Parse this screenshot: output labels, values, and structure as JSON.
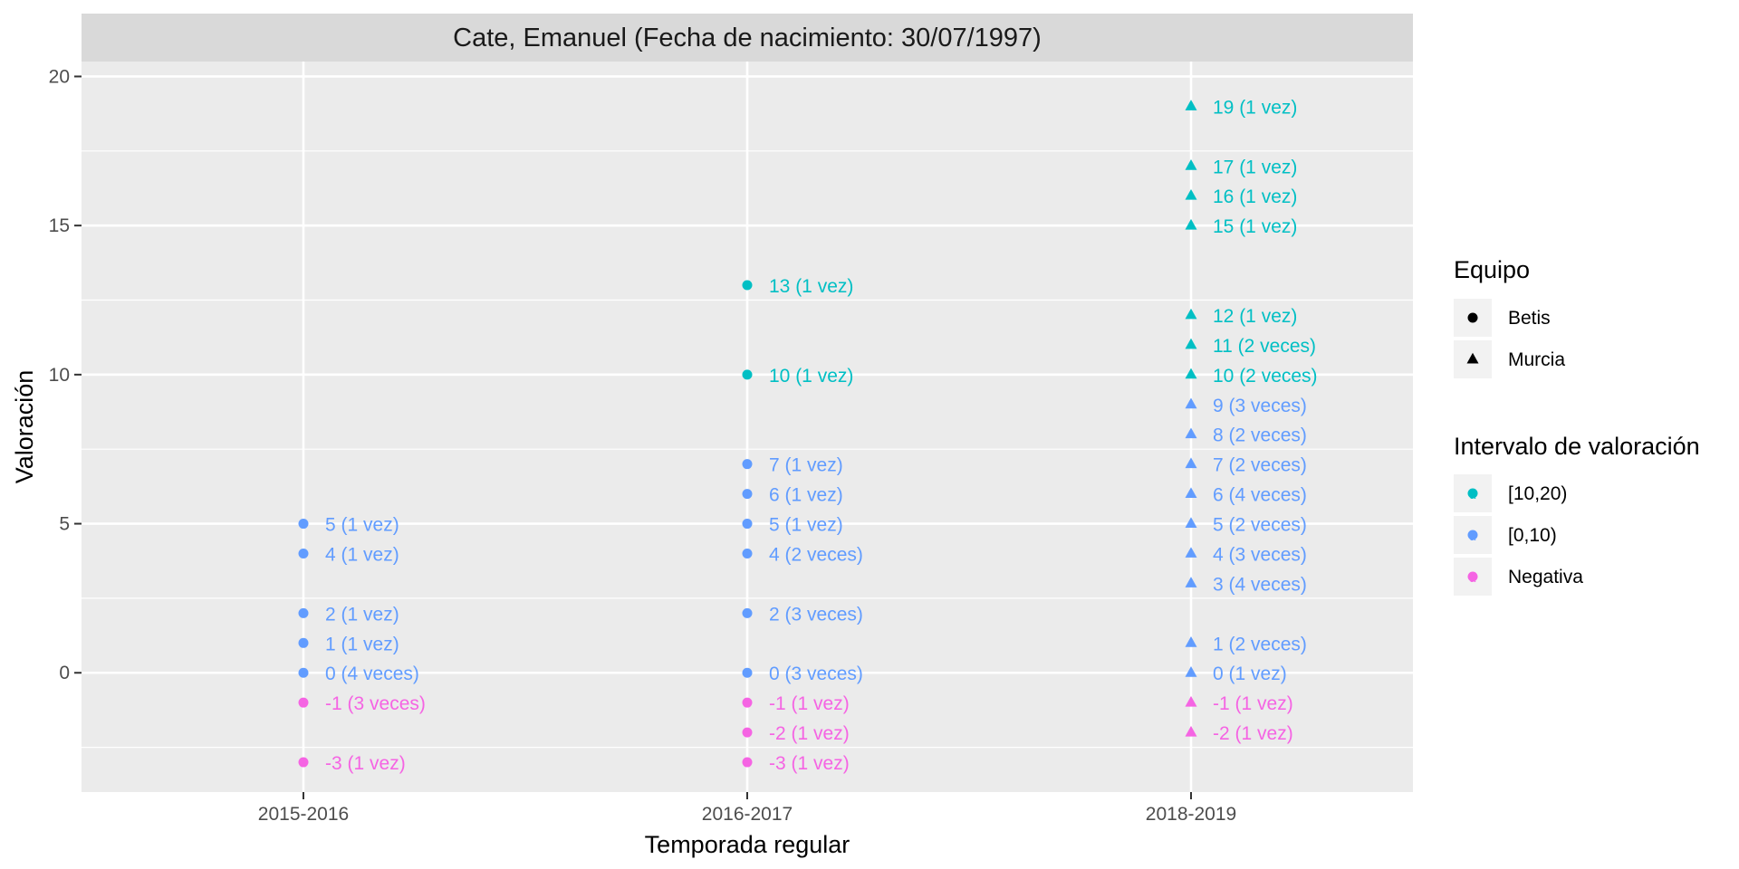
{
  "chart_data": {
    "type": "scatter",
    "title": "Cate, Emanuel (Fecha de nacimiento: 30/07/1997)",
    "xlabel": "Temporada regular",
    "ylabel": "Valoración",
    "categories": [
      "2015-2016",
      "2016-2017",
      "2018-2019"
    ],
    "yticks": [
      0,
      5,
      10,
      15,
      20
    ],
    "ylim": [
      -4,
      20.5
    ],
    "grid": true,
    "legend_position": "right",
    "legend": {
      "shape_title": "Equipo",
      "shapes": [
        {
          "label": "Betis",
          "shape": "circle"
        },
        {
          "label": "Murcia",
          "shape": "triangle"
        }
      ],
      "color_title": "Intervalo de valoración",
      "colors": [
        {
          "label": "[10,20)",
          "color": "#00BFC4"
        },
        {
          "label": "[0,10)",
          "color": "#619CFF"
        },
        {
          "label": "Negativa",
          "color": "#F564E3"
        }
      ]
    },
    "colors": {
      "high": "#00BFC4",
      "mid": "#619CFF",
      "neg": "#F564E3",
      "panel": "#EBEBEB",
      "strip": "#D9D9D9"
    },
    "points": [
      {
        "x": "2015-2016",
        "y": 5,
        "team": "Betis",
        "interval": "[0,10)",
        "label": "5 (1 vez)"
      },
      {
        "x": "2015-2016",
        "y": 4,
        "team": "Betis",
        "interval": "[0,10)",
        "label": "4 (1 vez)"
      },
      {
        "x": "2015-2016",
        "y": 2,
        "team": "Betis",
        "interval": "[0,10)",
        "label": "2 (1 vez)"
      },
      {
        "x": "2015-2016",
        "y": 1,
        "team": "Betis",
        "interval": "[0,10)",
        "label": "1 (1 vez)"
      },
      {
        "x": "2015-2016",
        "y": 0,
        "team": "Betis",
        "interval": "[0,10)",
        "label": "0 (4 veces)"
      },
      {
        "x": "2015-2016",
        "y": -1,
        "team": "Betis",
        "interval": "Negativa",
        "label": "-1 (3 veces)"
      },
      {
        "x": "2015-2016",
        "y": -3,
        "team": "Betis",
        "interval": "Negativa",
        "label": "-3 (1 vez)"
      },
      {
        "x": "2016-2017",
        "y": 13,
        "team": "Betis",
        "interval": "[10,20)",
        "label": "13 (1 vez)"
      },
      {
        "x": "2016-2017",
        "y": 10,
        "team": "Betis",
        "interval": "[10,20)",
        "label": "10 (1 vez)"
      },
      {
        "x": "2016-2017",
        "y": 7,
        "team": "Betis",
        "interval": "[0,10)",
        "label": "7 (1 vez)"
      },
      {
        "x": "2016-2017",
        "y": 6,
        "team": "Betis",
        "interval": "[0,10)",
        "label": "6 (1 vez)"
      },
      {
        "x": "2016-2017",
        "y": 5,
        "team": "Betis",
        "interval": "[0,10)",
        "label": "5 (1 vez)"
      },
      {
        "x": "2016-2017",
        "y": 4,
        "team": "Betis",
        "interval": "[0,10)",
        "label": "4 (2 veces)"
      },
      {
        "x": "2016-2017",
        "y": 2,
        "team": "Betis",
        "interval": "[0,10)",
        "label": "2 (3 veces)"
      },
      {
        "x": "2016-2017",
        "y": 0,
        "team": "Betis",
        "interval": "[0,10)",
        "label": "0 (3 veces)"
      },
      {
        "x": "2016-2017",
        "y": -1,
        "team": "Betis",
        "interval": "Negativa",
        "label": "-1 (1 vez)"
      },
      {
        "x": "2016-2017",
        "y": -2,
        "team": "Betis",
        "interval": "Negativa",
        "label": "-2 (1 vez)"
      },
      {
        "x": "2016-2017",
        "y": -3,
        "team": "Betis",
        "interval": "Negativa",
        "label": "-3 (1 vez)"
      },
      {
        "x": "2018-2019",
        "y": 19,
        "team": "Murcia",
        "interval": "[10,20)",
        "label": "19 (1 vez)"
      },
      {
        "x": "2018-2019",
        "y": 17,
        "team": "Murcia",
        "interval": "[10,20)",
        "label": "17 (1 vez)"
      },
      {
        "x": "2018-2019",
        "y": 16,
        "team": "Murcia",
        "interval": "[10,20)",
        "label": "16 (1 vez)"
      },
      {
        "x": "2018-2019",
        "y": 15,
        "team": "Murcia",
        "interval": "[10,20)",
        "label": "15 (1 vez)"
      },
      {
        "x": "2018-2019",
        "y": 12,
        "team": "Murcia",
        "interval": "[10,20)",
        "label": "12 (1 vez)"
      },
      {
        "x": "2018-2019",
        "y": 11,
        "team": "Murcia",
        "interval": "[10,20)",
        "label": "11 (2 veces)"
      },
      {
        "x": "2018-2019",
        "y": 10,
        "team": "Murcia",
        "interval": "[10,20)",
        "label": "10 (2 veces)"
      },
      {
        "x": "2018-2019",
        "y": 9,
        "team": "Murcia",
        "interval": "[0,10)",
        "label": "9 (3 veces)"
      },
      {
        "x": "2018-2019",
        "y": 8,
        "team": "Murcia",
        "interval": "[0,10)",
        "label": "8 (2 veces)"
      },
      {
        "x": "2018-2019",
        "y": 7,
        "team": "Murcia",
        "interval": "[0,10)",
        "label": "7 (2 veces)"
      },
      {
        "x": "2018-2019",
        "y": 6,
        "team": "Murcia",
        "interval": "[0,10)",
        "label": "6 (4 veces)"
      },
      {
        "x": "2018-2019",
        "y": 5,
        "team": "Murcia",
        "interval": "[0,10)",
        "label": "5 (2 veces)"
      },
      {
        "x": "2018-2019",
        "y": 4,
        "team": "Murcia",
        "interval": "[0,10)",
        "label": "4 (3 veces)"
      },
      {
        "x": "2018-2019",
        "y": 3,
        "team": "Murcia",
        "interval": "[0,10)",
        "label": "3 (4 veces)"
      },
      {
        "x": "2018-2019",
        "y": 1,
        "team": "Murcia",
        "interval": "[0,10)",
        "label": "1 (2 veces)"
      },
      {
        "x": "2018-2019",
        "y": 0,
        "team": "Murcia",
        "interval": "[0,10)",
        "label": "0 (1 vez)"
      },
      {
        "x": "2018-2019",
        "y": -1,
        "team": "Murcia",
        "interval": "Negativa",
        "label": "-1 (1 vez)"
      },
      {
        "x": "2018-2019",
        "y": -2,
        "team": "Murcia",
        "interval": "Negativa",
        "label": "-2 (1 vez)"
      }
    ]
  }
}
